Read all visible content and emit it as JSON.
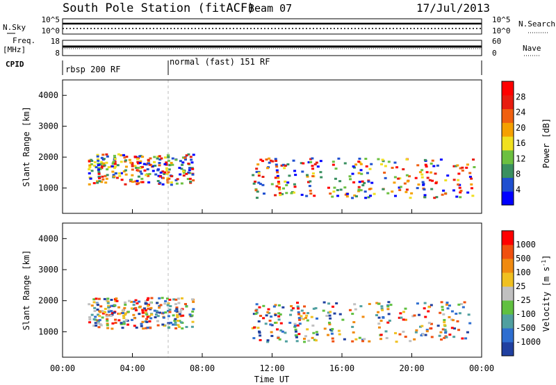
{
  "header": {
    "title": "South Pole Station (fitACF)",
    "beam": "Beam 07",
    "date": "17/Jul/2013"
  },
  "left_labels": {
    "nsky": "N.Sky",
    "freq_top": "Freq.",
    "freq_unit": "[MHz]",
    "cpid": "CPID"
  },
  "right_labels": {
    "nsearch": "N.Search",
    "nave": "Nave"
  },
  "noise_panel": {
    "left_ticks": [
      "10^5",
      "10^0"
    ],
    "right_ticks": [
      "10^5",
      "10^0"
    ]
  },
  "freq_panel": {
    "left_ticks": [
      "18",
      "8"
    ],
    "right_ticks": [
      "60",
      "0"
    ]
  },
  "cpid_panel": {
    "modes": [
      "rbsp 200 RF",
      "normal (fast) 151 RF"
    ]
  },
  "colors": {
    "power": [
      "#0000ff",
      "#1f4fd0",
      "#3a9060",
      "#6cc040",
      "#f0e020",
      "#f5a000",
      "#f06010",
      "#e81c10",
      "#ff0000"
    ],
    "velocity": [
      "#2040a0",
      "#2e6ed0",
      "#50a0a0",
      "#60c040",
      "#c0c0c0",
      "#f0c020",
      "#f08a10",
      "#f05010",
      "#ff0000"
    ]
  },
  "chart_data": [
    {
      "type": "heatmap",
      "title": "",
      "xlabel": "",
      "ylabel": "Slant Range [km]",
      "xlim": [
        "00:00",
        "00:00"
      ],
      "x_ticks": [
        "00:00",
        "04:00",
        "08:00",
        "12:00",
        "16:00",
        "20:00",
        "00:00"
      ],
      "ylim": [
        180,
        4500
      ],
      "y_ticks": [
        1000,
        2000,
        3000,
        4000
      ],
      "colorbar": {
        "label": "Power [dB]",
        "ticks": [
          4,
          8,
          12,
          16,
          20,
          24,
          28
        ],
        "range": [
          0,
          30
        ]
      }
    },
    {
      "type": "heatmap",
      "title": "",
      "xlabel": "Time UT",
      "ylabel": "Slant Range [km]",
      "xlim": [
        "00:00",
        "00:00"
      ],
      "x_ticks": [
        "00:00",
        "04:00",
        "08:00",
        "12:00",
        "16:00",
        "20:00",
        "00:00"
      ],
      "ylim": [
        180,
        4500
      ],
      "y_ticks": [
        1000,
        2000,
        3000,
        4000
      ],
      "colorbar": {
        "label": "Velocity [m s-1]",
        "label_main": "Velocity [m s",
        "label_sup": "-1",
        "label_close": "]",
        "ticks": [
          1000,
          500,
          100,
          25,
          -25,
          -100,
          -500,
          -1000
        ]
      }
    }
  ]
}
